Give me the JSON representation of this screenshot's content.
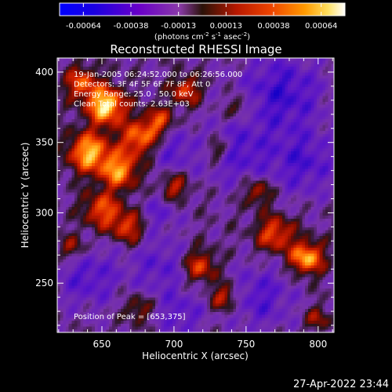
{
  "chart_data": {
    "type": "heatmap",
    "title": "Reconstructed RHESSI Image",
    "xlabel": "Heliocentric X (arcsec)",
    "ylabel": "Heliocentric Y (arcsec)",
    "xlim": [
      619,
      811
    ],
    "ylim": [
      215,
      410
    ],
    "x_ticks": [
      650,
      700,
      750,
      800
    ],
    "y_ticks": [
      250,
      300,
      350,
      400
    ],
    "colorbar": {
      "ticks": [
        "-0.00064",
        "-0.00038",
        "-0.00013",
        "0.00013",
        "0.00038",
        "0.00064"
      ],
      "range": [
        -0.00064,
        0.00064
      ],
      "unit_prefix": "(photons cm",
      "unit_exp1": "-2",
      "unit_mid": " s",
      "unit_exp2": "-1",
      "unit_mid2": " asec",
      "unit_exp3": "-2",
      "unit_suffix": ")"
    },
    "info_lines": [
      "19-Jan-2005 06:24:52.000 to 06:26:56.000",
      "Detectors: 3F 4F 5F 6F 7F 8F, Att 0",
      "Energy Range: 25.0 - 50.0 keV",
      "Clean      Total counts: 2.63E+03"
    ],
    "peak_label": "Position of Peak = [653,375]",
    "peak": [
      653,
      375
    ],
    "bright_regions": [
      {
        "x": 653,
        "y": 376,
        "level": 1.0,
        "sigma": 9
      },
      {
        "x": 641,
        "y": 343,
        "level": 0.85,
        "sigma": 10
      },
      {
        "x": 662,
        "y": 330,
        "level": 0.75,
        "sigma": 9
      },
      {
        "x": 676,
        "y": 353,
        "level": 0.7,
        "sigma": 9
      },
      {
        "x": 690,
        "y": 365,
        "level": 0.55,
        "sigma": 7
      },
      {
        "x": 636,
        "y": 392,
        "level": 0.6,
        "sigma": 8
      },
      {
        "x": 708,
        "y": 387,
        "level": 0.55,
        "sigma": 7
      },
      {
        "x": 650,
        "y": 302,
        "level": 0.6,
        "sigma": 9
      },
      {
        "x": 668,
        "y": 290,
        "level": 0.55,
        "sigma": 8
      },
      {
        "x": 700,
        "y": 318,
        "level": 0.45,
        "sigma": 7
      },
      {
        "x": 792,
        "y": 268,
        "level": 0.85,
        "sigma": 8
      },
      {
        "x": 770,
        "y": 285,
        "level": 0.6,
        "sigma": 9
      },
      {
        "x": 758,
        "y": 315,
        "level": 0.45,
        "sigma": 7
      },
      {
        "x": 718,
        "y": 262,
        "level": 0.55,
        "sigma": 8
      },
      {
        "x": 735,
        "y": 240,
        "level": 0.5,
        "sigma": 7
      },
      {
        "x": 675,
        "y": 232,
        "level": 0.35,
        "sigma": 7
      },
      {
        "x": 730,
        "y": 345,
        "level": 0.4,
        "sigma": 6
      },
      {
        "x": 745,
        "y": 375,
        "level": 0.35,
        "sigma": 6
      },
      {
        "x": 800,
        "y": 225,
        "level": 0.35,
        "sigma": 6
      },
      {
        "x": 630,
        "y": 275,
        "level": 0.4,
        "sigma": 7
      }
    ],
    "dark_regions": [
      {
        "x": 775,
        "y": 385,
        "level": 0.9,
        "sigma": 20
      },
      {
        "x": 745,
        "y": 342,
        "level": 0.7,
        "sigma": 16
      },
      {
        "x": 790,
        "y": 335,
        "level": 0.75,
        "sigma": 16
      },
      {
        "x": 700,
        "y": 345,
        "level": 0.6,
        "sigma": 12
      },
      {
        "x": 640,
        "y": 255,
        "level": 0.7,
        "sigma": 16
      },
      {
        "x": 690,
        "y": 262,
        "level": 0.6,
        "sigma": 14
      },
      {
        "x": 760,
        "y": 240,
        "level": 0.7,
        "sigma": 16
      },
      {
        "x": 705,
        "y": 228,
        "level": 0.6,
        "sigma": 12
      },
      {
        "x": 690,
        "y": 300,
        "level": 0.5,
        "sigma": 10
      }
    ]
  },
  "footer": {
    "timestamp": "27-Apr-2022 23:44"
  }
}
